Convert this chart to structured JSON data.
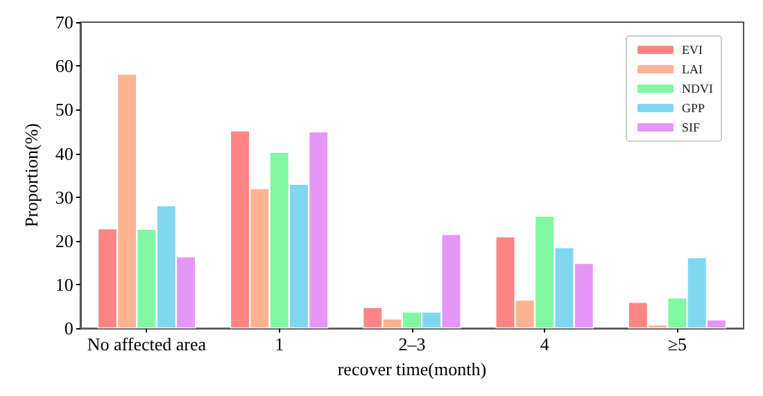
{
  "chart_data": {
    "type": "bar",
    "xlabel": "recover time(month)",
    "ylabel": "Proportion(%)",
    "categories": [
      "No affected area",
      "1",
      "2–3",
      "4",
      "≥5"
    ],
    "series": [
      {
        "name": "EVI",
        "color": "#ff8585",
        "values": [
          22.8,
          45.2,
          4.8,
          21,
          6
        ]
      },
      {
        "name": "LAI",
        "color": "#ffb392",
        "values": [
          58.2,
          32,
          2.2,
          6.5,
          0.8
        ]
      },
      {
        "name": "NDVI",
        "color": "#80f8a4",
        "values": [
          22.7,
          40.3,
          3.8,
          25.7,
          7
        ]
      },
      {
        "name": "GPP",
        "color": "#80d7f0",
        "values": [
          28.1,
          33,
          3.8,
          18.5,
          16.2
        ]
      },
      {
        "name": "SIF",
        "color": "#e597f8",
        "values": [
          16.4,
          45,
          21.5,
          14.9,
          2
        ]
      }
    ],
    "ylim": [
      0,
      70
    ],
    "yticks": [
      0,
      10,
      20,
      30,
      40,
      50,
      60,
      70
    ],
    "grid": false,
    "legend": "top right"
  }
}
